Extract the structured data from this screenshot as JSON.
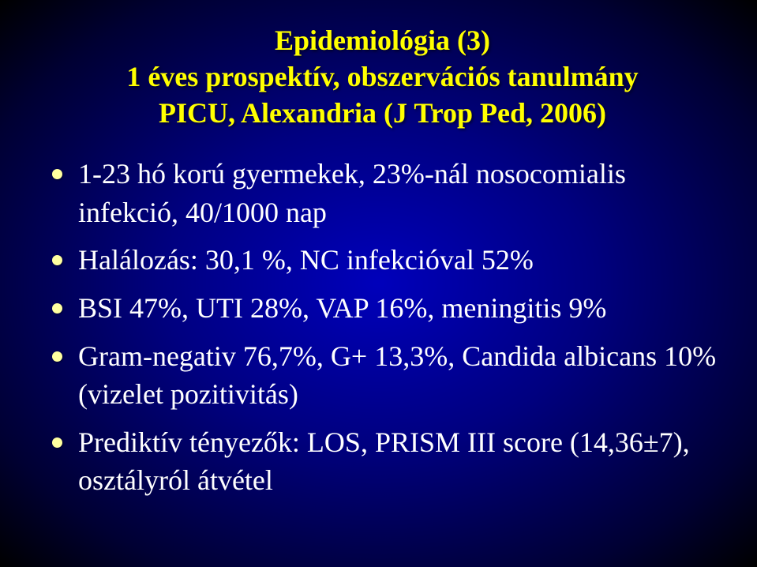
{
  "slide": {
    "title_lines": [
      "Epidemiológia (3)",
      "1 éves prospektív, obszervációs tanulmány",
      "PICU, Alexandria (J Trop Ped, 2006)"
    ],
    "bullets": [
      "1-23 hó korú gyermekek, 23%-nál nosocomialis infekció, 40/1000 nap",
      "Halálozás: 30,1 %, NC infekcióval 52%",
      "BSI 47%, UTI 28%, VAP 16%, meningitis 9%",
      "Gram-negativ 76,7%, G+ 13,3%, Candida albicans 10% (vizelet pozitivitás)",
      "Prediktív tényezők: LOS, PRISM III score (14,36±7), osztályról átvétel"
    ],
    "colors": {
      "title_color": "#ffff00",
      "body_color": "#ffffff",
      "bullet_dot": "#ffffa0",
      "bg_center": "#0000bb",
      "bg_edge": "#000000"
    },
    "typography": {
      "title_fontsize_pt": 27,
      "body_fontsize_pt": 27,
      "font_family": "Times New Roman",
      "title_weight": "bold"
    }
  }
}
